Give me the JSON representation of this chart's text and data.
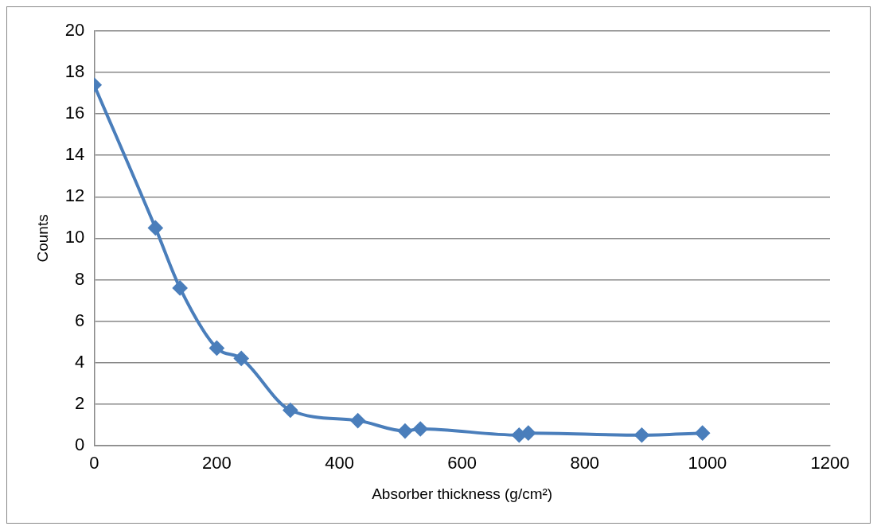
{
  "chart_data": {
    "type": "line",
    "xlabel": "Absorber thickness (g/cm²)",
    "ylabel": "Counts",
    "x": [
      0,
      100,
      140,
      200,
      240,
      320,
      430,
      507,
      532,
      693,
      708,
      893,
      992
    ],
    "series": [
      {
        "color": "#4a7ebb",
        "values": [
          17.4,
          10.5,
          7.6,
          4.7,
          4.2,
          1.7,
          1.2,
          0.7,
          0.8,
          0.5,
          0.6,
          0.5,
          0.6
        ]
      }
    ],
    "xlim": [
      0,
      1200
    ],
    "xticks": [
      0,
      200,
      400,
      600,
      800,
      1000,
      1200
    ],
    "ylim": [
      0,
      20
    ],
    "yticks": [
      0,
      2,
      4,
      6,
      8,
      10,
      12,
      14,
      16,
      18,
      20
    ],
    "grid": "y",
    "legend": false,
    "marker": "diamond",
    "line_style": "solid"
  }
}
